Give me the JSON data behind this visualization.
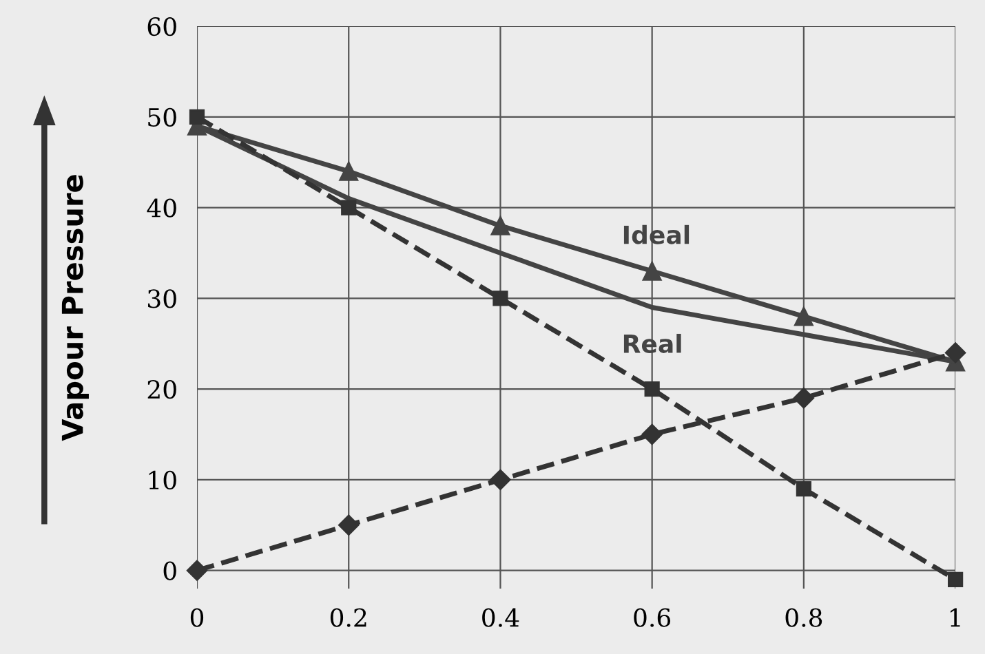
{
  "chart_data": {
    "type": "line",
    "ylabel": "Vapour Pressure",
    "x": [
      0,
      0.2,
      0.4,
      0.6,
      0.8,
      1
    ],
    "series": [
      {
        "name": "Ideal",
        "color": "#444444",
        "values": [
          49,
          44,
          38,
          33,
          28,
          23
        ],
        "marker": "triangle",
        "line_style": "solid"
      },
      {
        "name": "Real",
        "color": "#444444",
        "values": [
          49,
          41,
          35,
          29,
          26,
          23
        ],
        "marker": "none",
        "line_style": "solid"
      },
      {
        "color": "#333333",
        "values": [
          50,
          40,
          30,
          20,
          9,
          -1
        ],
        "marker": "square",
        "line_style": "dashed"
      },
      {
        "color": "#333333",
        "values": [
          0,
          5,
          10,
          15,
          19,
          24
        ],
        "marker": "diamond",
        "line_style": "dashed"
      }
    ],
    "xlim": [
      0,
      1
    ],
    "ylim": [
      -2,
      60
    ],
    "xticks": [
      0,
      0.2,
      0.4,
      0.6,
      0.8,
      1
    ],
    "yticks": [
      0,
      10,
      20,
      30,
      40,
      50,
      60
    ],
    "grid": true,
    "legend": false
  }
}
